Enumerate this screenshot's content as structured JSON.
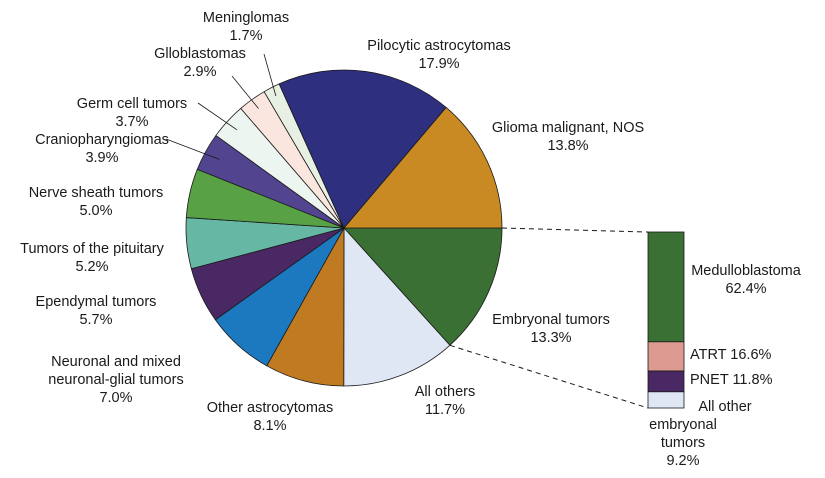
{
  "chart_data": [
    {
      "type": "pie",
      "slices": [
        {
          "name": "Embryonal tumors",
          "value": 13.3,
          "label": "13.3%",
          "color": "#3b7035"
        },
        {
          "name": "All others",
          "value": 11.7,
          "label": "11.7%",
          "color": "#dfe7f5"
        },
        {
          "name": "Other astrocytomas",
          "value": 8.1,
          "label": "8.1%",
          "color": "#c07a22"
        },
        {
          "name": "Neuronal and mixed neuronal-glial tumors",
          "value": 7.0,
          "label": "7.0%",
          "color": "#1c79c0"
        },
        {
          "name": "Ependymal tumors",
          "value": 5.7,
          "label": "5.7%",
          "color": "#4a2864"
        },
        {
          "name": "Tumors of the pituitary",
          "value": 5.2,
          "label": "5.2%",
          "color": "#66b8a5"
        },
        {
          "name": "Nerve sheath tumors",
          "value": 5.0,
          "label": "5.0%",
          "color": "#58a245"
        },
        {
          "name": "Craniopharyngiomas",
          "value": 3.9,
          "label": "3.9%",
          "color": "#53448f"
        },
        {
          "name": "Germ cell tumors",
          "value": 3.7,
          "label": "3.7%",
          "color": "#edf5f0"
        },
        {
          "name": "Glioblastomas",
          "value": 2.9,
          "label": "2.9%",
          "color": "#fbe6df"
        },
        {
          "name": "Meninglomas",
          "value": 1.7,
          "label": "1.7%",
          "color": "#e8f0e4"
        },
        {
          "name": "Pilocytic astrocytomas",
          "value": 17.9,
          "label": "17.9%",
          "color": "#2e2f7f"
        },
        {
          "name": "Glioma malignant, NOS",
          "value": 13.8,
          "label": "13.8%",
          "color": "#c98a24"
        }
      ],
      "labels": [
        {
          "lines": [
            "Embryonal tumors",
            "13.3%"
          ]
        },
        {
          "lines": [
            "All others",
            "11.7%"
          ]
        },
        {
          "lines": [
            "Other astrocytomas",
            "8.1%"
          ]
        },
        {
          "lines": [
            "Neuronal and mixed",
            "neuronal-glial tumors",
            "7.0%"
          ]
        },
        {
          "lines": [
            "Ependymal tumors",
            "5.7%"
          ]
        },
        {
          "lines": [
            "Tumors of the pituitary",
            "5.2%"
          ]
        },
        {
          "lines": [
            "Nerve sheath tumors",
            "5.0%"
          ]
        },
        {
          "lines": [
            "Craniopharyngiomas",
            "3.9%"
          ]
        },
        {
          "lines": [
            "Germ cell tumors",
            "3.7%"
          ]
        },
        {
          "lines": [
            "Glloblastomas",
            "2.9%"
          ]
        },
        {
          "lines": [
            "Meninglomas",
            "1.7%"
          ]
        },
        {
          "lines": [
            "Pilocytic astrocytomas",
            "17.9%"
          ]
        },
        {
          "lines": [
            "Glioma malignant, NOS",
            "13.8%"
          ]
        }
      ]
    },
    {
      "type": "bar",
      "stacked": true,
      "detail_of": "Embryonal tumors",
      "segments": [
        {
          "name": "Medulloblastoma",
          "value": 62.4,
          "color": "#3b7035",
          "lines": [
            "Medulloblastoma",
            "62.4%"
          ]
        },
        {
          "name": "ATRT",
          "value": 16.6,
          "color": "#dc9a90",
          "lines": [
            "ATRT 16.6%"
          ]
        },
        {
          "name": "PNET",
          "value": 11.8,
          "color": "#4a2864",
          "lines": [
            "PNET 11.8%"
          ]
        },
        {
          "name": "All other embryonal tumors",
          "value": 9.2,
          "color": "#dfe7f5",
          "lines": [
            "All other",
            "embryonal",
            "tumors",
            "9.2%"
          ]
        }
      ]
    }
  ]
}
